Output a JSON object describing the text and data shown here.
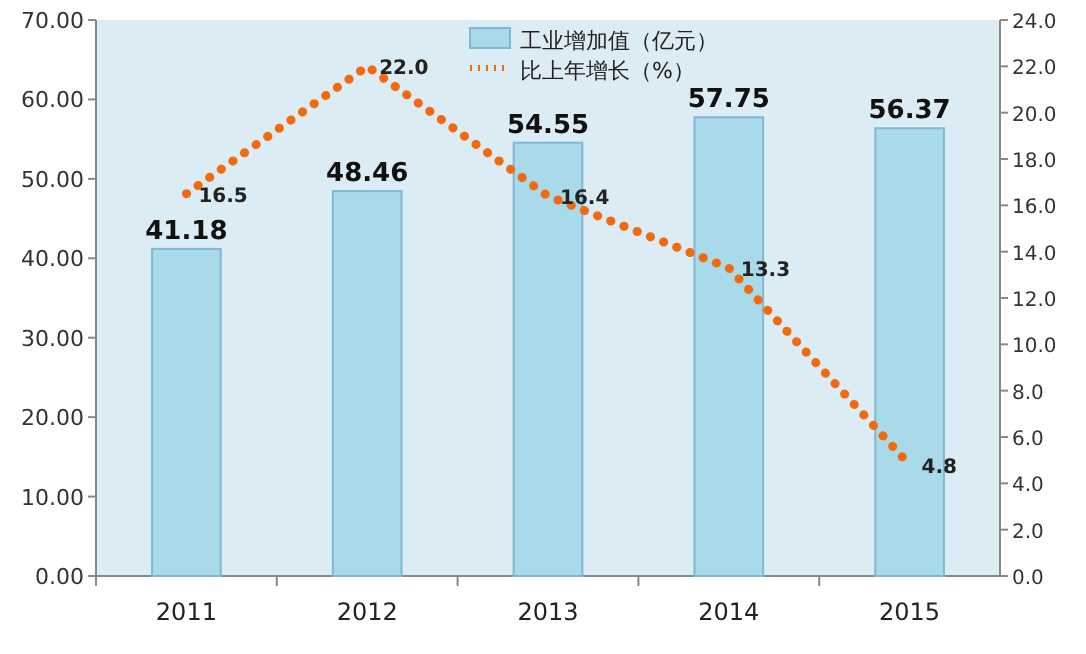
{
  "chart_data": {
    "type": "bar",
    "categories": [
      "2011",
      "2012",
      "2013",
      "2014",
      "2015"
    ],
    "series": [
      {
        "name": "工业增加值（亿元）",
        "color": "#a9daea",
        "values": [
          41.18,
          48.46,
          54.55,
          57.75,
          56.37
        ]
      },
      {
        "name": "比上年增长（%）",
        "type": "line",
        "axis": "y2",
        "color": "#f26a10",
        "line_style": "dotted",
        "values": [
          16.5,
          22.0,
          16.4,
          13.3,
          4.8
        ],
        "value_labels": [
          "16.5",
          "22.0",
          "16.4",
          "13.3",
          "4.8"
        ]
      }
    ],
    "ylim": [
      0,
      70
    ],
    "yticks": [
      {
        "value": 0,
        "label": "0.00"
      },
      {
        "value": 10,
        "label": "10.00"
      },
      {
        "value": 20,
        "label": "20.00"
      },
      {
        "value": 30,
        "label": "30.00"
      },
      {
        "value": 40,
        "label": "40.00"
      },
      {
        "value": 50,
        "label": "50.00"
      },
      {
        "value": 60,
        "label": "60.00"
      },
      {
        "value": 70,
        "label": "70.00"
      }
    ],
    "y2lim": [
      0,
      24
    ],
    "y2ticks": [
      {
        "value": 0,
        "label": "0.0"
      },
      {
        "value": 2,
        "label": "2.0"
      },
      {
        "value": 4,
        "label": "4.0"
      },
      {
        "value": 6,
        "label": "6.0"
      },
      {
        "value": 8,
        "label": "8.0"
      },
      {
        "value": 10,
        "label": "10.0"
      },
      {
        "value": 12,
        "label": "12.0"
      },
      {
        "value": 14,
        "label": "14.0"
      },
      {
        "value": 16,
        "label": "16.0"
      },
      {
        "value": 18,
        "label": "18.0"
      },
      {
        "value": 20,
        "label": "20.0"
      },
      {
        "value": 22,
        "label": "22.0"
      },
      {
        "value": 24,
        "label": "24.0"
      }
    ],
    "data_labels": true,
    "legend": "top",
    "marker": "none",
    "grid": false
  }
}
